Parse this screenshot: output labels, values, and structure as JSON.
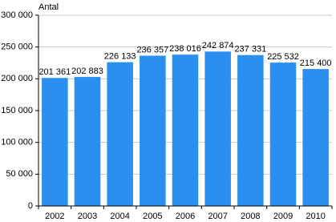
{
  "chart_data": {
    "type": "bar",
    "y_label": "Antal",
    "categories": [
      "2002",
      "2003",
      "2004",
      "2005",
      "2006",
      "2007",
      "2008",
      "2009",
      "2010"
    ],
    "values": [
      201361,
      202883,
      226133,
      236357,
      238016,
      242874,
      237331,
      225532,
      215400
    ],
    "value_labels": [
      "201 361",
      "202 883",
      "226 133",
      "236 357",
      "238 016",
      "242 874",
      "237 331",
      "225 532",
      "215 400"
    ],
    "color": "#2b8ff0",
    "ylim": [
      0,
      300000
    ],
    "yticks": [
      0,
      {
        "value": 50000,
        "label": "50 000"
      },
      {
        "value": 100000,
        "label": "100 000"
      },
      {
        "value": 150000,
        "label": "150 000"
      },
      {
        "value": 200000,
        "label": "200 000"
      },
      {
        "value": 250000,
        "label": "250 000"
      },
      {
        "value": 300000,
        "label": "300 000"
      }
    ],
    "grid": true
  }
}
